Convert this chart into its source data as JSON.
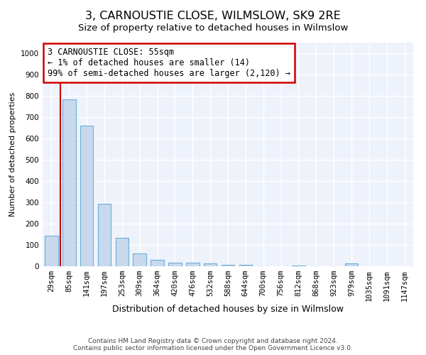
{
  "title": "3, CARNOUSTIE CLOSE, WILMSLOW, SK9 2RE",
  "subtitle": "Size of property relative to detached houses in Wilmslow",
  "xlabel": "Distribution of detached houses by size in Wilmslow",
  "ylabel": "Number of detached properties",
  "bar_color": "#c8d9ee",
  "bar_edge_color": "#6baed6",
  "background_color": "#ffffff",
  "plot_bg_color": "#eef2fb",
  "grid_color": "#ffffff",
  "annotation_box_color": "#cc0000",
  "annotation_text": "3 CARNOUSTIE CLOSE: 55sqm\n← 1% of detached houses are smaller (14)\n99% of semi-detached houses are larger (2,120) →",
  "marker_line_color": "#cc0000",
  "categories": [
    "29sqm",
    "85sqm",
    "141sqm",
    "197sqm",
    "253sqm",
    "309sqm",
    "364sqm",
    "420sqm",
    "476sqm",
    "532sqm",
    "588sqm",
    "644sqm",
    "700sqm",
    "756sqm",
    "812sqm",
    "868sqm",
    "923sqm",
    "979sqm",
    "1035sqm",
    "1091sqm",
    "1147sqm"
  ],
  "values": [
    143,
    783,
    660,
    295,
    135,
    60,
    30,
    18,
    18,
    14,
    7,
    7,
    0,
    0,
    5,
    0,
    0,
    15,
    0,
    0,
    0
  ],
  "ylim": [
    0,
    1050
  ],
  "yticks": [
    0,
    100,
    200,
    300,
    400,
    500,
    600,
    700,
    800,
    900,
    1000
  ],
  "footer_text": "Contains HM Land Registry data © Crown copyright and database right 2024.\nContains public sector information licensed under the Open Government Licence v3.0.",
  "title_fontsize": 11.5,
  "subtitle_fontsize": 9.5,
  "xlabel_fontsize": 9,
  "ylabel_fontsize": 8,
  "tick_fontsize": 7.5,
  "annotation_fontsize": 8.5,
  "footer_fontsize": 6.5
}
